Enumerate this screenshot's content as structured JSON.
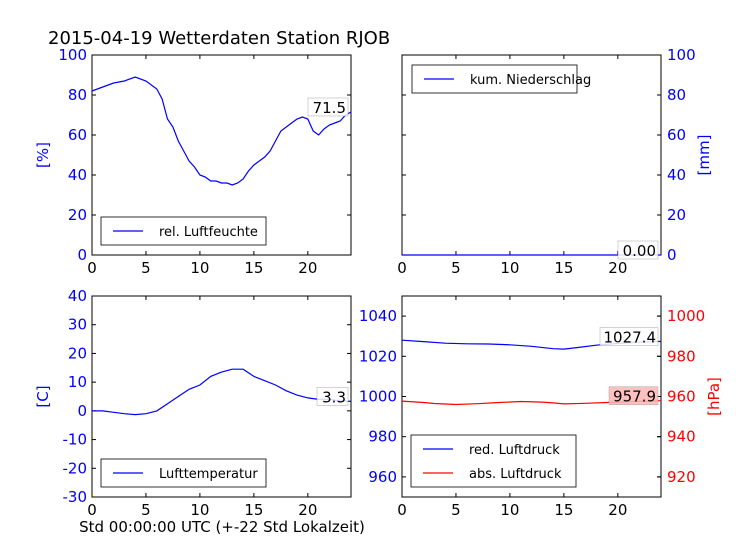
{
  "figure": {
    "title": "2015-04-19 Wetterdaten Station RJOB",
    "xlabel": "Std 00:00:00 UTC (+-22 Std Lokalzeit)"
  },
  "colors": {
    "blue": "#0000ff",
    "red": "#ff0000",
    "black": "#000000",
    "label_box": "#ffb6b6"
  },
  "chart_data": [
    {
      "id": "humidity",
      "type": "line",
      "xlim": [
        0,
        24
      ],
      "ylim": [
        0,
        100
      ],
      "xticks": [
        0,
        5,
        10,
        15,
        20
      ],
      "yticks": [
        0,
        20,
        40,
        60,
        80,
        100
      ],
      "ylabel": "[%]",
      "series": [
        {
          "name": "rel. Luftfeuchte",
          "color": "#0000ff",
          "x": [
            0,
            1,
            2,
            3,
            4,
            5,
            6,
            6.5,
            7,
            7.5,
            8,
            8.5,
            9,
            9.5,
            10,
            10.5,
            11,
            11.5,
            12,
            12.5,
            13,
            13.5,
            14,
            14.5,
            15,
            15.5,
            16,
            16.5,
            17,
            17.5,
            18,
            18.5,
            19,
            19.5,
            20,
            20.5,
            21,
            21.5,
            22,
            22.5,
            23,
            23.5,
            24
          ],
          "y": [
            82,
            84,
            86,
            87,
            89,
            87,
            83,
            78,
            68,
            64,
            57,
            52,
            47,
            44,
            40,
            39,
            37,
            37,
            36,
            36,
            35,
            36,
            38,
            42,
            45,
            47,
            49,
            52,
            57,
            62,
            64,
            66,
            68,
            69,
            68,
            62,
            60,
            63,
            65,
            66,
            67,
            70,
            71.5
          ]
        }
      ],
      "last_value_label": "71.5",
      "legend": "lower-left"
    },
    {
      "id": "precipitation",
      "type": "line",
      "xlim": [
        0,
        24
      ],
      "ylim": [
        0,
        100
      ],
      "xticks": [
        0,
        5,
        10,
        15,
        20
      ],
      "yticks": [
        0,
        20,
        40,
        60,
        80,
        100
      ],
      "ylabel": "[mm]",
      "yaxis_side": "right",
      "series": [
        {
          "name": "kum. Niederschlag",
          "color": "#0000ff",
          "x": [
            0,
            24
          ],
          "y": [
            0,
            0
          ]
        }
      ],
      "last_value_label": "0.00",
      "legend": "upper-left"
    },
    {
      "id": "temperature",
      "type": "line",
      "xlim": [
        0,
        24
      ],
      "ylim": [
        -30,
        40
      ],
      "xticks": [
        0,
        5,
        10,
        15,
        20
      ],
      "yticks": [
        -30,
        -20,
        -10,
        0,
        10,
        20,
        30,
        40
      ],
      "ylabel": "[C]",
      "series": [
        {
          "name": "Lufttemperatur",
          "color": "#0000ff",
          "x": [
            0,
            1,
            2,
            3,
            4,
            5,
            6,
            7,
            8,
            9,
            10,
            11,
            12,
            13,
            14,
            15,
            16,
            17,
            18,
            19,
            20,
            21,
            22,
            23,
            24
          ],
          "y": [
            0,
            0,
            -0.5,
            -1,
            -1.3,
            -1,
            0,
            2.5,
            5,
            7.5,
            9,
            12,
            13.5,
            14.5,
            14.5,
            12,
            10.5,
            9,
            7,
            5.5,
            4.5,
            4,
            4,
            3.5,
            3.3
          ]
        }
      ],
      "last_value_label": "3.3",
      "legend": "lower-left"
    },
    {
      "id": "pressure",
      "type": "line",
      "xlim": [
        0,
        24
      ],
      "ylim_left": [
        950,
        1050
      ],
      "ylim_right": [
        910,
        1010
      ],
      "xticks": [
        0,
        5,
        10,
        15,
        20
      ],
      "yticks_left": [
        960,
        980,
        1000,
        1020,
        1040
      ],
      "yticks_right": [
        920,
        940,
        960,
        980,
        1000
      ],
      "ylabel_right": "[hPa]",
      "series": [
        {
          "name": "red. Luftdruck",
          "color": "#0000ff",
          "axis": "left",
          "x": [
            0,
            2,
            4,
            6,
            8,
            10,
            12,
            14,
            15,
            16,
            18,
            20,
            22,
            24
          ],
          "y": [
            1028,
            1027.3,
            1026.5,
            1026.2,
            1026.1,
            1025.7,
            1025,
            1023.8,
            1023.6,
            1024.2,
            1025.5,
            1026.4,
            1027,
            1027.4
          ]
        },
        {
          "name": "abs. Luftdruck",
          "color": "#ff0000",
          "axis": "right",
          "x": [
            0,
            2,
            3,
            5,
            7,
            9,
            11,
            13,
            14,
            15,
            17,
            19,
            21,
            23,
            24
          ],
          "y": [
            957.7,
            957.0,
            956.5,
            956.0,
            956.4,
            957.0,
            957.5,
            957.2,
            956.8,
            956.3,
            956.6,
            957.0,
            957.4,
            957.7,
            957.9
          ]
        }
      ],
      "last_value_labels": [
        "1027.4",
        "957.9"
      ],
      "legend": "lower-left"
    }
  ]
}
